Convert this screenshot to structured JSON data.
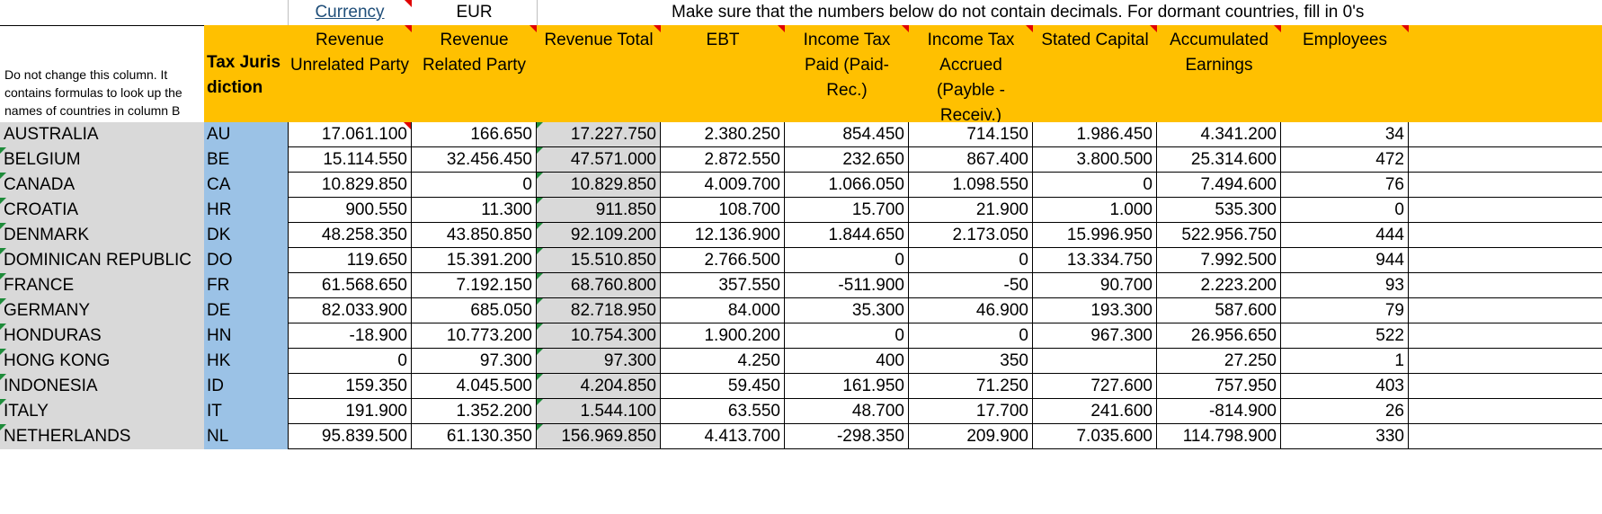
{
  "top_row": {
    "currency_label": "Currency",
    "currency_value": "EUR",
    "instruction": "Make sure that the numbers below do not contain decimals.  For dormant countries, fill in 0's"
  },
  "header": {
    "note": "Do not change this column.  It contains formulas to look up the names of countries in column B",
    "tax_jurisdiction": "Tax Jurisdiction",
    "columns": [
      "Revenue Unrelated Party",
      "Revenue Related Party",
      "Revenue Total",
      "EBT",
      "Income Tax Paid (Paid-Rec.)",
      "Income Tax Accrued (Payble - Receiv.)",
      "Stated Capital",
      "Accumulated Earnings",
      "Employees"
    ]
  },
  "rows": [
    {
      "country": "AUSTRALIA",
      "code": "AU",
      "values": [
        "17.061.100",
        "166.650",
        "17.227.750",
        "2.380.250",
        "854.450",
        "714.150",
        "1.986.450",
        "4.341.200",
        "34"
      ]
    },
    {
      "country": "BELGIUM",
      "code": "BE",
      "values": [
        "15.114.550",
        "32.456.450",
        "47.571.000",
        "2.872.550",
        "232.650",
        "867.400",
        "3.800.500",
        "25.314.600",
        "472"
      ]
    },
    {
      "country": "CANADA",
      "code": "CA",
      "values": [
        "10.829.850",
        "0",
        "10.829.850",
        "4.009.700",
        "1.066.050",
        "1.098.550",
        "0",
        "7.494.600",
        "76"
      ]
    },
    {
      "country": "CROATIA",
      "code": "HR",
      "values": [
        "900.550",
        "11.300",
        "911.850",
        "108.700",
        "15.700",
        "21.900",
        "1.000",
        "535.300",
        "0"
      ]
    },
    {
      "country": "DENMARK",
      "code": "DK",
      "values": [
        "48.258.350",
        "43.850.850",
        "92.109.200",
        "12.136.900",
        "1.844.650",
        "2.173.050",
        "15.996.950",
        "522.956.750",
        "444"
      ]
    },
    {
      "country": "DOMINICAN REPUBLIC",
      "code": "DO",
      "values": [
        "119.650",
        "15.391.200",
        "15.510.850",
        "2.766.500",
        "0",
        "0",
        "13.334.750",
        "7.992.500",
        "944"
      ]
    },
    {
      "country": "FRANCE",
      "code": "FR",
      "values": [
        "61.568.650",
        "7.192.150",
        "68.760.800",
        "357.550",
        "-511.900",
        "-50",
        "90.700",
        "2.223.200",
        "93"
      ]
    },
    {
      "country": "GERMANY",
      "code": "DE",
      "values": [
        "82.033.900",
        "685.050",
        "82.718.950",
        "84.000",
        "35.300",
        "46.900",
        "193.300",
        "587.600",
        "79"
      ]
    },
    {
      "country": "HONDURAS",
      "code": "HN",
      "values": [
        "-18.900",
        "10.773.200",
        "10.754.300",
        "1.900.200",
        "0",
        "0",
        "967.300",
        "26.956.650",
        "522"
      ]
    },
    {
      "country": "HONG KONG",
      "code": "HK",
      "values": [
        "0",
        "97.300",
        "97.300",
        "4.250",
        "400",
        "350",
        "",
        "27.250",
        "1"
      ]
    },
    {
      "country": "INDONESIA",
      "code": "ID",
      "values": [
        "159.350",
        "4.045.500",
        "4.204.850",
        "59.450",
        "161.950",
        "71.250",
        "727.600",
        "757.950",
        "403"
      ]
    },
    {
      "country": "ITALY",
      "code": "IT",
      "values": [
        "191.900",
        "1.352.200",
        "1.544.100",
        "63.550",
        "48.700",
        "17.700",
        "241.600",
        "-814.900",
        "26"
      ]
    },
    {
      "country": "NETHERLANDS",
      "code": "NL",
      "values": [
        "95.839.500",
        "61.130.350",
        "156.969.850",
        "4.413.700",
        "-298.350",
        "209.900",
        "7.035.600",
        "114.798.900",
        "330"
      ]
    }
  ]
}
